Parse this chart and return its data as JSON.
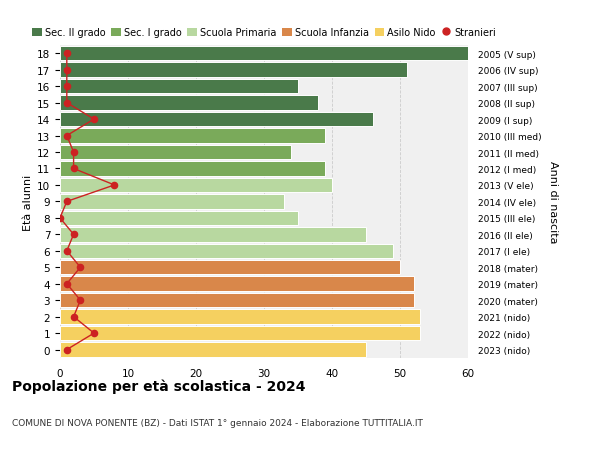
{
  "ages": [
    18,
    17,
    16,
    15,
    14,
    13,
    12,
    11,
    10,
    9,
    8,
    7,
    6,
    5,
    4,
    3,
    2,
    1,
    0
  ],
  "right_labels": [
    "2005 (V sup)",
    "2006 (IV sup)",
    "2007 (III sup)",
    "2008 (II sup)",
    "2009 (I sup)",
    "2010 (III med)",
    "2011 (II med)",
    "2012 (I med)",
    "2013 (V ele)",
    "2014 (IV ele)",
    "2015 (III ele)",
    "2016 (II ele)",
    "2017 (I ele)",
    "2018 (mater)",
    "2019 (mater)",
    "2020 (mater)",
    "2021 (nido)",
    "2022 (nido)",
    "2023 (nido)"
  ],
  "bar_values": [
    62,
    51,
    35,
    38,
    46,
    39,
    34,
    39,
    40,
    33,
    35,
    45,
    49,
    50,
    52,
    52,
    53,
    53,
    45
  ],
  "bar_colors": [
    "#4a7a4a",
    "#4a7a4a",
    "#4a7a4a",
    "#4a7a4a",
    "#4a7a4a",
    "#7aaa5a",
    "#7aaa5a",
    "#7aaa5a",
    "#b8d8a0",
    "#b8d8a0",
    "#b8d8a0",
    "#b8d8a0",
    "#b8d8a0",
    "#d9874a",
    "#d9874a",
    "#d9874a",
    "#f5d060",
    "#f5d060",
    "#f5d060"
  ],
  "stranieri_values": [
    1,
    1,
    1,
    1,
    5,
    1,
    2,
    2,
    8,
    1,
    0,
    2,
    1,
    3,
    1,
    3,
    2,
    5,
    1
  ],
  "legend_labels": [
    "Sec. II grado",
    "Sec. I grado",
    "Scuola Primaria",
    "Scuola Infanzia",
    "Asilo Nido",
    "Stranieri"
  ],
  "legend_colors": [
    "#4a7a4a",
    "#7aaa5a",
    "#b8d8a0",
    "#d9874a",
    "#f5d060",
    "#cc2222"
  ],
  "title": "Popolazione per età scolastica - 2024",
  "subtitle": "COMUNE DI NOVA PONENTE (BZ) - Dati ISTAT 1° gennaio 2024 - Elaborazione TUTTITALIA.IT",
  "ylabel_left": "Età alunni",
  "ylabel_right": "Anni di nascita",
  "xlim": [
    0,
    60
  ],
  "xticks": [
    0,
    10,
    20,
    30,
    40,
    50,
    60
  ],
  "bg_color": "#ffffff",
  "bar_bg_color": "#f0f0f0",
  "grid_color": "#cccccc"
}
